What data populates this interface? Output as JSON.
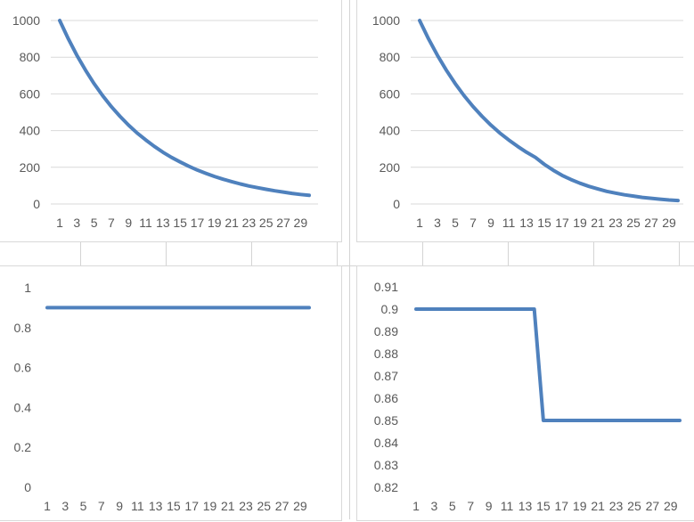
{
  "chart_data": [
    {
      "type": "line",
      "ylim": [
        0,
        1000
      ],
      "yticks": [
        0,
        200,
        400,
        600,
        800,
        1000
      ],
      "ytick_labels": [
        "0",
        "200",
        "400",
        "600",
        "800",
        "1000"
      ],
      "grid": true,
      "x": [
        1,
        2,
        3,
        4,
        5,
        6,
        7,
        8,
        9,
        10,
        11,
        12,
        13,
        14,
        15,
        16,
        17,
        18,
        19,
        20,
        21,
        22,
        23,
        24,
        25,
        26,
        27,
        28,
        29,
        30
      ],
      "xtick_labels": [
        "1",
        "3",
        "5",
        "7",
        "9",
        "11",
        "13",
        "15",
        "17",
        "19",
        "21",
        "23",
        "25",
        "27",
        "29"
      ],
      "series": [
        {
          "color": "#4f81bd",
          "values": [
            1000,
            900,
            810,
            729,
            656,
            590,
            531,
            478,
            430,
            387,
            349,
            314,
            282,
            254,
            229,
            206,
            185,
            167,
            150,
            135,
            122,
            109,
            98,
            89,
            80,
            72,
            65,
            58,
            52,
            47
          ]
        }
      ]
    },
    {
      "type": "line",
      "ylim": [
        0,
        1000
      ],
      "yticks": [
        0,
        200,
        400,
        600,
        800,
        1000
      ],
      "ytick_labels": [
        "0",
        "200",
        "400",
        "600",
        "800",
        "1000"
      ],
      "grid": true,
      "x": [
        1,
        2,
        3,
        4,
        5,
        6,
        7,
        8,
        9,
        10,
        11,
        12,
        13,
        14,
        15,
        16,
        17,
        18,
        19,
        20,
        21,
        22,
        23,
        24,
        25,
        26,
        27,
        28,
        29,
        30
      ],
      "xtick_labels": [
        "1",
        "3",
        "5",
        "7",
        "9",
        "11",
        "13",
        "15",
        "17",
        "19",
        "21",
        "23",
        "25",
        "27",
        "29"
      ],
      "series": [
        {
          "color": "#4f81bd",
          "values": [
            1000,
            900,
            810,
            729,
            656,
            590,
            531,
            478,
            430,
            387,
            349,
            314,
            282,
            254,
            216,
            184,
            156,
            133,
            113,
            96,
            82,
            69,
            59,
            50,
            43,
            36,
            31,
            26,
            22,
            19
          ]
        }
      ]
    },
    {
      "type": "line",
      "ylim": [
        0,
        1
      ],
      "yticks": [
        0,
        0.2,
        0.4,
        0.6,
        0.8,
        1
      ],
      "ytick_labels": [
        "0",
        "0.2",
        "0.4",
        "0.6",
        "0.8",
        "1"
      ],
      "grid": false,
      "x": [
        1,
        2,
        3,
        4,
        5,
        6,
        7,
        8,
        9,
        10,
        11,
        12,
        13,
        14,
        15,
        16,
        17,
        18,
        19,
        20,
        21,
        22,
        23,
        24,
        25,
        26,
        27,
        28,
        29,
        30
      ],
      "xtick_labels": [
        "1",
        "3",
        "5",
        "7",
        "9",
        "11",
        "13",
        "15",
        "17",
        "19",
        "21",
        "23",
        "25",
        "27",
        "29"
      ],
      "series": [
        {
          "color": "#4f81bd",
          "values": [
            0.9,
            0.9,
            0.9,
            0.9,
            0.9,
            0.9,
            0.9,
            0.9,
            0.9,
            0.9,
            0.9,
            0.9,
            0.9,
            0.9,
            0.9,
            0.9,
            0.9,
            0.9,
            0.9,
            0.9,
            0.9,
            0.9,
            0.9,
            0.9,
            0.9,
            0.9,
            0.9,
            0.9,
            0.9,
            0.9
          ]
        }
      ]
    },
    {
      "type": "line",
      "ylim": [
        0.82,
        0.91
      ],
      "yticks": [
        0.82,
        0.83,
        0.84,
        0.85,
        0.86,
        0.87,
        0.88,
        0.89,
        0.9,
        0.91
      ],
      "ytick_labels": [
        "0.82",
        "0.83",
        "0.84",
        "0.85",
        "0.86",
        "0.87",
        "0.88",
        "0.89",
        "0.9",
        "0.91"
      ],
      "grid": false,
      "x": [
        1,
        2,
        3,
        4,
        5,
        6,
        7,
        8,
        9,
        10,
        11,
        12,
        13,
        14,
        15,
        16,
        17,
        18,
        19,
        20,
        21,
        22,
        23,
        24,
        25,
        26,
        27,
        28,
        29,
        30
      ],
      "xtick_labels": [
        "1",
        "3",
        "5",
        "7",
        "9",
        "11",
        "13",
        "15",
        "17",
        "19",
        "21",
        "23",
        "25",
        "27",
        "29"
      ],
      "series": [
        {
          "color": "#4f81bd",
          "values": [
            0.9,
            0.9,
            0.9,
            0.9,
            0.9,
            0.9,
            0.9,
            0.9,
            0.9,
            0.9,
            0.9,
            0.9,
            0.9,
            0.9,
            0.85,
            0.85,
            0.85,
            0.85,
            0.85,
            0.85,
            0.85,
            0.85,
            0.85,
            0.85,
            0.85,
            0.85,
            0.85,
            0.85,
            0.85,
            0.85
          ]
        }
      ]
    }
  ]
}
